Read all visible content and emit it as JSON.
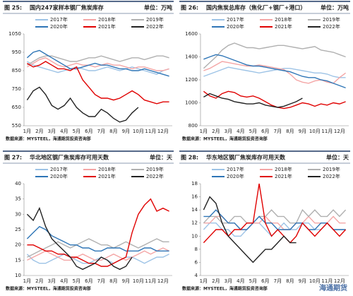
{
  "chart_data": [
    {
      "type": "line",
      "figure_label": "图 25:",
      "title": "国内247家样本钢厂焦炭库存",
      "unit": "单位：万吨",
      "source": "数据来源：MYSTEEL，海通期货投资咨询部",
      "categories": [
        "1月",
        null,
        "2月",
        null,
        "3月",
        null,
        "4月",
        null,
        "5月",
        null,
        "6月",
        null,
        "7月",
        null,
        "8月",
        null,
        "9月",
        null,
        "10月",
        null,
        "11月",
        null,
        "12月",
        null
      ],
      "ylim": [
        550,
        1050
      ],
      "yticks": [
        550,
        650,
        750,
        850,
        950,
        1050
      ],
      "series": [
        {
          "name": "2017年",
          "color": "#9dc3e6",
          "values": [
            900,
            880,
            870,
            860,
            850,
            840,
            850,
            860,
            870,
            860,
            850,
            850,
            860,
            870,
            860,
            850,
            860,
            870,
            860,
            850,
            840,
            830,
            850,
            860
          ]
        },
        {
          "name": "2018年",
          "color": "#f4a6a6",
          "values": [
            870,
            890,
            910,
            920,
            900,
            880,
            870,
            880,
            890,
            880,
            880,
            870,
            880,
            890,
            880,
            880,
            870,
            860,
            870,
            870,
            860,
            850,
            850,
            860
          ]
        },
        {
          "name": "2019年",
          "color": "#b0b0b0",
          "values": [
            880,
            900,
            920,
            930,
            930,
            920,
            910,
            900,
            900,
            910,
            920,
            920,
            930,
            920,
            910,
            900,
            910,
            920,
            920,
            910,
            920,
            930,
            930,
            920
          ]
        },
        {
          "name": "2020年",
          "color": "#2e75b6",
          "values": [
            920,
            950,
            960,
            940,
            920,
            900,
            880,
            860,
            860,
            870,
            880,
            890,
            880,
            880,
            870,
            860,
            860,
            850,
            850,
            860,
            850,
            840,
            830,
            820
          ]
        },
        {
          "name": "2021年",
          "color": "#e00000",
          "values": [
            890,
            870,
            880,
            900,
            880,
            860,
            860,
            850,
            870,
            800,
            760,
            720,
            700,
            700,
            690,
            700,
            720,
            740,
            720,
            690,
            680,
            670,
            680,
            680
          ]
        },
        {
          "name": "2022年",
          "color": "#222222",
          "values": [
            690,
            740,
            760,
            720,
            660,
            640,
            660,
            700,
            650,
            620,
            600,
            600,
            640,
            620,
            590,
            570,
            580,
            620,
            650,
            null,
            null,
            null,
            null,
            null
          ]
        }
      ]
    },
    {
      "type": "line",
      "figure_label": "图 26:",
      "title": "国内焦炭总库存（焦化厂+钢厂+港口）",
      "unit": "单位：万吨",
      "source": "数据来源：MYSTEEL，海通期货投资咨询部",
      "categories": [
        "1月",
        null,
        "2月",
        null,
        "3月",
        null,
        "4月",
        null,
        "5月",
        null,
        "6月",
        null,
        "7月",
        null,
        "8月",
        null,
        "9月",
        null,
        "10月",
        null,
        "11月",
        null,
        "12月",
        null
      ],
      "ylim": [
        800,
        1600
      ],
      "yticks": [
        800,
        1000,
        1200,
        1400,
        1600
      ],
      "series": [
        {
          "name": "2017年",
          "color": "#9dc3e6",
          "values": [
            1230,
            1250,
            1270,
            1290,
            1310,
            1300,
            1290,
            1280,
            1270,
            1260,
            1270,
            1280,
            1290,
            1300,
            1300,
            1290,
            1280,
            1270,
            1260,
            1260,
            1250,
            1230,
            1220,
            1220
          ]
        },
        {
          "name": "2018年",
          "color": "#f4a6a6",
          "values": [
            1280,
            1300,
            1330,
            1360,
            1350,
            1340,
            1330,
            1320,
            1320,
            1330,
            1320,
            1310,
            1300,
            1290,
            1250,
            1200,
            1180,
            1170,
            1190,
            1200,
            1180,
            1170,
            1220,
            1260
          ]
        },
        {
          "name": "2019年",
          "color": "#b0b0b0",
          "values": [
            1300,
            1350,
            1400,
            1460,
            1500,
            1520,
            1500,
            1480,
            1480,
            1470,
            1480,
            1490,
            1500,
            1500,
            1490,
            1480,
            1470,
            1480,
            1490,
            1460,
            1450,
            1440,
            1420,
            1400
          ]
        },
        {
          "name": "2020年",
          "color": "#2e75b6",
          "values": [
            1380,
            1400,
            1420,
            1410,
            1390,
            1370,
            1350,
            1330,
            1320,
            1320,
            1310,
            1300,
            1290,
            1280,
            1270,
            1250,
            1230,
            1220,
            1220,
            1200,
            1190,
            1170,
            1150,
            1130
          ]
        },
        {
          "name": "2021年",
          "color": "#e00000",
          "values": [
            1100,
            1060,
            1040,
            1080,
            1100,
            1090,
            1060,
            1050,
            1060,
            1040,
            1010,
            980,
            960,
            950,
            960,
            980,
            1000,
            990,
            970,
            990,
            980,
            1000,
            990,
            1010
          ]
        },
        {
          "name": "2022年",
          "color": "#222222",
          "values": [
            1050,
            1080,
            1060,
            1040,
            1030,
            1010,
            1000,
            990,
            990,
            1000,
            980,
            970,
            960,
            970,
            990,
            1010,
            1040,
            null,
            null,
            null,
            null,
            null,
            null,
            null
          ]
        }
      ]
    },
    {
      "type": "line",
      "figure_label": "图 27:",
      "title": "华北地区钢厂焦炭库存可用天数",
      "unit": "单位：天",
      "source": "数据来源：MYSTEEL，海通期货投资咨询部",
      "categories": [
        "1月",
        null,
        "2月",
        null,
        "3月",
        null,
        "4月",
        null,
        "5月",
        null,
        "6月",
        null,
        "7月",
        null,
        "8月",
        null,
        "9月",
        null,
        "10月",
        null,
        "11月",
        null,
        "12月",
        null
      ],
      "ylim": [
        10,
        40
      ],
      "yticks": [
        10,
        15,
        20,
        25,
        30,
        35,
        40
      ],
      "series": [
        {
          "name": "2017年",
          "color": "#9dc3e6",
          "values": [
            17,
            15,
            14,
            14,
            15,
            16,
            17,
            16,
            15,
            14,
            14,
            15,
            16,
            15,
            14,
            15,
            16,
            16,
            15,
            14,
            15,
            16,
            16,
            17
          ]
        },
        {
          "name": "2018年",
          "color": "#f4a6a6",
          "values": [
            15,
            16,
            17,
            18,
            17,
            16,
            15,
            15,
            16,
            17,
            16,
            15,
            15,
            16,
            17,
            16,
            15,
            16,
            17,
            18,
            17,
            18,
            19,
            18
          ]
        },
        {
          "name": "2019年",
          "color": "#b0b0b0",
          "values": [
            16,
            17,
            18,
            19,
            20,
            21,
            20,
            19,
            20,
            21,
            22,
            21,
            20,
            20,
            19,
            20,
            21,
            20,
            19,
            20,
            21,
            22,
            21,
            21
          ]
        },
        {
          "name": "2020年",
          "color": "#2e75b6",
          "values": [
            22,
            24,
            26,
            25,
            23,
            22,
            21,
            20,
            20,
            19,
            19,
            18,
            18,
            19,
            19,
            19,
            18,
            18,
            18,
            19,
            19,
            18,
            18,
            18
          ]
        },
        {
          "name": "2021年",
          "color": "#e00000",
          "values": [
            20,
            20,
            19,
            18,
            18,
            17,
            17,
            16,
            16,
            15,
            14,
            14,
            13,
            13,
            14,
            15,
            16,
            24,
            30,
            33,
            35,
            31,
            32,
            31
          ]
        },
        {
          "name": "2022年",
          "color": "#222222",
          "values": [
            30,
            28,
            32,
            26,
            22,
            20,
            18,
            16,
            13,
            12,
            13,
            14,
            16,
            15,
            13,
            12,
            13,
            16,
            null,
            null,
            null,
            null,
            null,
            null
          ]
        }
      ]
    },
    {
      "type": "line",
      "figure_label": "图 28:",
      "title": "华东地区钢厂焦炭库存可用天数",
      "unit": "单位：天",
      "source": "数据来源：MYSTEEL，海通期货投资咨询部",
      "categories": [
        "1月",
        null,
        "2月",
        null,
        "3月",
        null,
        "4月",
        null,
        "5月",
        null,
        "6月",
        null,
        "7月",
        null,
        "8月",
        null,
        "9月",
        null,
        "10月",
        null,
        "11月",
        null,
        "12月",
        null
      ],
      "ylim": [
        4,
        18
      ],
      "yticks": [
        4,
        6,
        8,
        10,
        12,
        14,
        16,
        18
      ],
      "series": [
        {
          "name": "2017年",
          "color": "#9dc3e6",
          "values": [
            11,
            12,
            12,
            11,
            11,
            10,
            10,
            11,
            12,
            12,
            11,
            10,
            11,
            12,
            11,
            11,
            12,
            12,
            11,
            11,
            12,
            11,
            11,
            11
          ]
        },
        {
          "name": "2018年",
          "color": "#f4a6a6",
          "values": [
            12,
            12,
            13,
            13,
            12,
            12,
            11,
            11,
            12,
            12,
            13,
            12,
            12,
            11,
            11,
            12,
            12,
            13,
            12,
            12,
            12,
            13,
            12,
            12
          ]
        },
        {
          "name": "2019年",
          "color": "#b0b0b0",
          "values": [
            12,
            13,
            13,
            12,
            12,
            13,
            13,
            12,
            12,
            13,
            13,
            14,
            13,
            13,
            12,
            12,
            14,
            13,
            14,
            13,
            13,
            14,
            13,
            14
          ]
        },
        {
          "name": "2020年",
          "color": "#2e75b6",
          "values": [
            13,
            13,
            14,
            13,
            12,
            12,
            11,
            11,
            12,
            13,
            12,
            12,
            11,
            11,
            11,
            12,
            12,
            11,
            11,
            12,
            12,
            11,
            11,
            11
          ]
        },
        {
          "name": "2021年",
          "color": "#e00000",
          "values": [
            9,
            10,
            11,
            11,
            10,
            11,
            11,
            12,
            12,
            18,
            12,
            10,
            11,
            10,
            9,
            10,
            12,
            11,
            10,
            11,
            12,
            11,
            10,
            11
          ]
        },
        {
          "name": "2022年",
          "color": "#222222",
          "values": [
            14,
            16,
            15,
            12,
            10,
            9,
            8,
            7,
            6,
            7,
            8,
            8,
            9,
            10,
            9,
            9,
            null,
            null,
            null,
            null,
            null,
            null,
            null,
            null
          ]
        }
      ]
    }
  ],
  "watermark": "海通期货"
}
